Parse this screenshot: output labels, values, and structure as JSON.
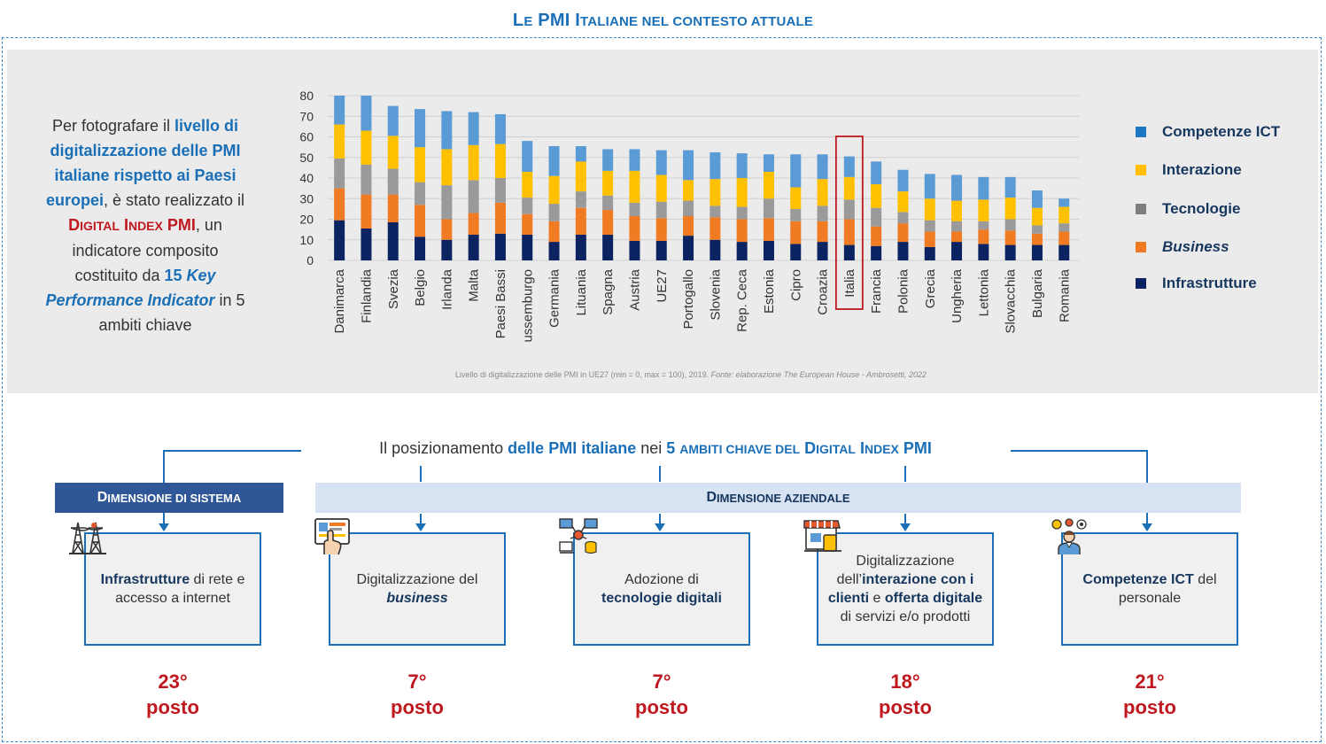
{
  "title": {
    "first": "L",
    "first_sc": "E",
    "mid": " PMI I",
    "sc": "TALIANE NEL CONTESTO ATTUALE"
  },
  "intro": {
    "t1": "Per fotografare il ",
    "t2": "livello di digitalizzazione delle PMI italiane rispetto ai Paesi europei",
    "t3": ", è stato realizzato il ",
    "t4a": "D",
    "t4b": "IGITAL",
    "t4c": " I",
    "t4d": "NDEX",
    "t4e": " PMI",
    "t5": ", un indicatore composito costituito da ",
    "t6": "15 ",
    "t7": "Key Performance Indicator",
    "t8": " in 5 ambiti chiave"
  },
  "chart_data": {
    "type": "bar",
    "stacked": true,
    "ylim": [
      0,
      80
    ],
    "yticks": [
      "0",
      "10",
      "20",
      "30",
      "40",
      "50",
      "60",
      "70",
      "80"
    ],
    "highlight": "Italia",
    "categories": [
      "Danimarca",
      "Finlandia",
      "Svezia",
      "Belgio",
      "Irlanda",
      "Malta",
      "Paesi Bassi",
      "Lussemburgo",
      "Germania",
      "Lituania",
      "Spagna",
      "Austria",
      "UE27",
      "Portogallo",
      "Slovenia",
      "Rep. Ceca",
      "Estonia",
      "Cipro",
      "Croazia",
      "Italia",
      "Francia",
      "Polonia",
      "Grecia",
      "Ungheria",
      "Lettonia",
      "Slovacchia",
      "Bulgaria",
      "Romania"
    ],
    "series": [
      {
        "name": "Infrastrutture",
        "color": "#0b2461",
        "values": [
          19.5,
          15.5,
          18.5,
          11.5,
          10,
          12.5,
          13,
          12.5,
          9,
          12.5,
          12.5,
          9.5,
          9.5,
          12,
          10,
          9,
          9.5,
          8,
          9,
          7.5,
          7,
          9,
          6.5,
          9,
          8,
          7.5,
          7.5,
          7.5
        ]
      },
      {
        "name": "Business",
        "color": "#f07b22",
        "values": [
          15.5,
          16.5,
          13.5,
          15.5,
          10,
          10.5,
          15,
          10,
          10,
          13,
          12,
          12,
          11,
          9.5,
          11,
          11,
          11,
          11,
          10,
          12.5,
          9.5,
          9,
          7.5,
          5,
          7,
          7,
          5.5,
          6.5
        ]
      },
      {
        "name": "Tecnologie",
        "color": "#9a9a9a",
        "values": [
          14.5,
          14.5,
          12.5,
          11,
          16.5,
          16,
          12,
          8,
          8.5,
          8,
          7,
          6.5,
          8,
          7.5,
          5.5,
          6,
          9.5,
          6,
          7.5,
          9.5,
          9,
          5.5,
          5.5,
          5,
          4,
          5.5,
          4,
          4
        ]
      },
      {
        "name": "Interazione",
        "color": "#ffc000",
        "values": [
          16.5,
          16.5,
          16,
          17,
          17.5,
          17,
          16.5,
          12.5,
          13.5,
          14.5,
          12,
          15.5,
          13,
          10,
          13,
          14,
          13,
          10.5,
          13,
          11,
          11.5,
          10,
          10.5,
          10,
          10.5,
          10.5,
          8.5,
          8
        ]
      },
      {
        "name": "Competenze ICT",
        "color": "#5b9bd5",
        "values": [
          14,
          17,
          14.5,
          18.5,
          18.5,
          16,
          14.5,
          15,
          14.5,
          7.5,
          10.5,
          10.5,
          12,
          14.5,
          13,
          12,
          8.5,
          16,
          12,
          10,
          11,
          10.5,
          12,
          12.5,
          11,
          10,
          8.5,
          4
        ]
      }
    ],
    "legend": [
      "Competenze ICT",
      "Interazione",
      "Tecnologie",
      "Business",
      "Infrastrutture"
    ],
    "footnote": "Livello di digitalizzazione delle PMI in UE27 (min = 0, max = 100), 2019.",
    "source": "Fonte: elaborazione The European House - Ambrosetti, 2022"
  },
  "headline": {
    "a": "Il posizionamento ",
    "b": "delle PMI italiane",
    "c": " nei ",
    "d": "5 ",
    "e": "AMBITI CHIAVE DEL",
    "f": " D",
    "g": "IGITAL",
    "h": " I",
    "i": "NDEX",
    "j": " PMI"
  },
  "dimensions": {
    "sistema": {
      "a": "D",
      "b": "IMENSIONE DI SISTEMA"
    },
    "aziendale": {
      "a": "D",
      "b": "IMENSIONE AZIENDALE"
    }
  },
  "cards": [
    {
      "bold": "Infrastrutture",
      "rest": " di rete e accesso a internet",
      "rank": "23°",
      "posto": "posto",
      "icon": "power-tower-icon"
    },
    {
      "plain": "Digitalizzazione del ",
      "bi": "business",
      "rank": "7°",
      "posto": "posto",
      "icon": "tablet-hand-icon"
    },
    {
      "plain": "Adozione di ",
      "bold": "tecnologie digitali",
      "rank": "7°",
      "posto": "posto",
      "icon": "network-devices-icon"
    },
    {
      "p1": "Digitalizzazione dell’",
      "b1": "interazione con i clienti",
      "p2": " e ",
      "b2": "offerta digitale",
      "p3": " di servizi e/o prodotti",
      "rank": "18°",
      "posto": "posto",
      "icon": "online-store-icon"
    },
    {
      "bold": "Competenze ICT",
      "rest": " del personale",
      "rank": "21°",
      "posto": "posto",
      "icon": "person-ideas-icon"
    }
  ]
}
